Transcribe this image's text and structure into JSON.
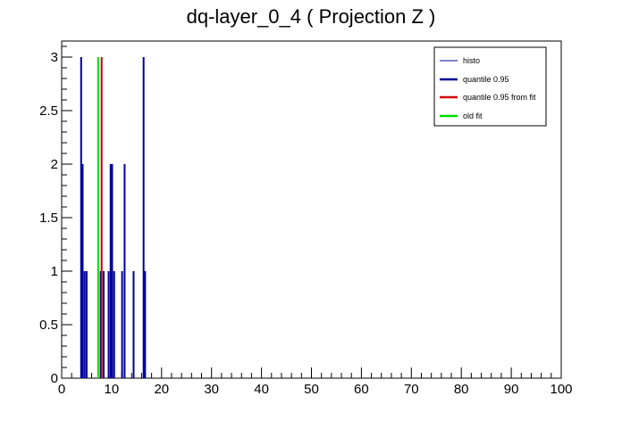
{
  "chart_data": {
    "type": "bar",
    "title": "dq-layer_0_4 ( Projection Z )",
    "xlabel": "",
    "ylabel": "",
    "xlim": [
      0,
      100
    ],
    "ylim": [
      0,
      3.15
    ],
    "x_ticks": [
      "0",
      "10",
      "20",
      "30",
      "40",
      "50",
      "60",
      "70",
      "80",
      "90",
      "100"
    ],
    "y_ticks": [
      "0",
      "0.5",
      "1",
      "1.5",
      "2",
      "2.5",
      "3"
    ],
    "grid": false,
    "legend_position": "top-right",
    "series": [
      {
        "name": "histo",
        "color": "#000099",
        "bins": [
          {
            "x": 3.9,
            "y": 3
          },
          {
            "x": 4.2,
            "y": 2
          },
          {
            "x": 4.6,
            "y": 1
          },
          {
            "x": 5.0,
            "y": 1
          },
          {
            "x": 7.8,
            "y": 1
          },
          {
            "x": 8.4,
            "y": 1
          },
          {
            "x": 9.4,
            "y": 1
          },
          {
            "x": 9.8,
            "y": 2
          },
          {
            "x": 10.1,
            "y": 2
          },
          {
            "x": 10.5,
            "y": 1
          },
          {
            "x": 12.1,
            "y": 1
          },
          {
            "x": 12.6,
            "y": 2
          },
          {
            "x": 14.4,
            "y": 1
          },
          {
            "x": 16.4,
            "y": 3
          },
          {
            "x": 16.7,
            "y": 1
          }
        ]
      },
      {
        "name": "quantile 0.95",
        "color": "#000099"
      },
      {
        "name": "quantile 0.95 from fit",
        "color": "#cc0000",
        "x": 8.0,
        "y": 3
      },
      {
        "name": "old fit",
        "color": "#00dd00",
        "x": 7.3,
        "y": 3
      }
    ]
  }
}
